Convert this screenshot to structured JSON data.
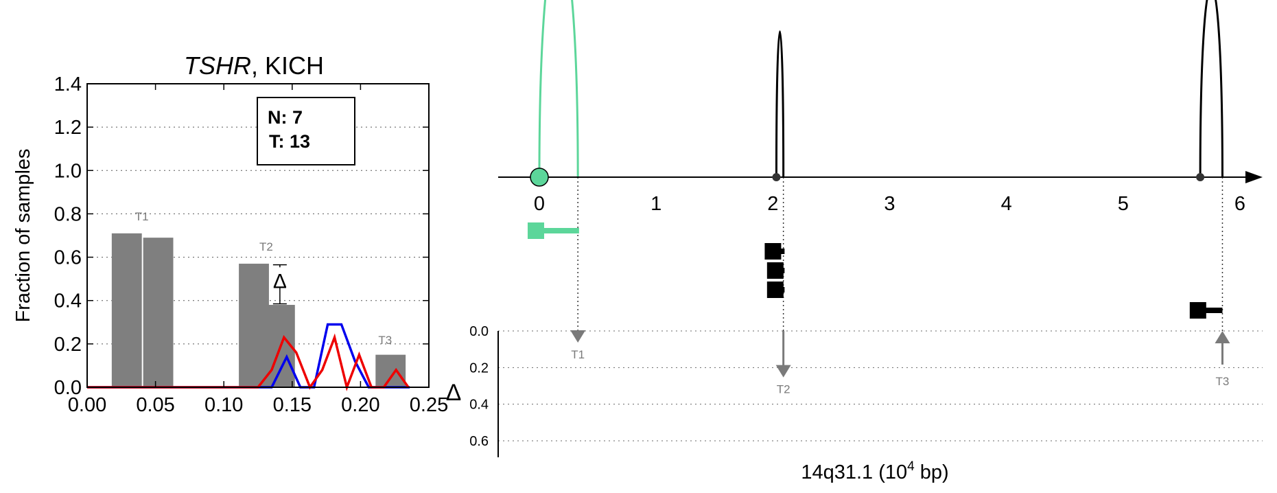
{
  "chart_data": [
    {
      "type": "bar",
      "title_gene": "TSHR",
      "title_rest": ", KICH",
      "ylabel": "Fraction of samples",
      "xlabel_symbol": "Δ",
      "xlim": [
        0,
        0.25
      ],
      "ylim": [
        0,
        1.4
      ],
      "x_ticks": [
        "0.00",
        "0.05",
        "0.10",
        "0.15",
        "0.20",
        "0.25"
      ],
      "y_ticks": [
        "0.0",
        "0.2",
        "0.4",
        "0.6",
        "0.8",
        "1.0",
        "1.2",
        "1.4"
      ],
      "grid": "horizontal-dotted",
      "legend_box": {
        "n_label": "N: 7",
        "t_label": "T: 13",
        "placement": "top-right"
      },
      "bars": [
        {
          "x": 0.029,
          "value": 0.71,
          "group": "T1"
        },
        {
          "x": 0.052,
          "value": 0.69,
          "group": ""
        },
        {
          "x": 0.122,
          "value": 0.57,
          "group": "T2"
        },
        {
          "x": 0.141,
          "value": 0.38,
          "group": ""
        },
        {
          "x": 0.222,
          "value": 0.15,
          "group": "T3"
        }
      ],
      "bar_width": 0.022,
      "group_labels": [
        {
          "text": "T1",
          "x": 0.04,
          "y": 0.77
        },
        {
          "text": "T2",
          "x": 0.131,
          "y": 0.63
        },
        {
          "text": "T3",
          "x": 0.218,
          "y": 0.2
        }
      ],
      "delta_marker": {
        "x": 0.141,
        "y": 0.49,
        "err_low": 0.385,
        "err_high": 0.565,
        "symbol": "Δ"
      },
      "series": [
        {
          "color": "#0000ee",
          "x": [
            0.0,
            0.12,
            0.135,
            0.146,
            0.156,
            0.166,
            0.176,
            0.186,
            0.196,
            0.206,
            0.216,
            0.226,
            0.236
          ],
          "y": [
            0.0,
            0.0,
            0.0,
            0.14,
            0.0,
            0.0,
            0.29,
            0.29,
            0.12,
            0.0,
            0.0,
            0.0,
            0.0
          ]
        },
        {
          "color": "#ee0000",
          "x": [
            0.0,
            0.125,
            0.135,
            0.144,
            0.153,
            0.163,
            0.172,
            0.181,
            0.19,
            0.199,
            0.208,
            0.217,
            0.226,
            0.235
          ],
          "y": [
            0.0,
            0.0,
            0.08,
            0.23,
            0.16,
            0.0,
            0.08,
            0.23,
            0.0,
            0.15,
            0.0,
            0.0,
            0.08,
            0.0
          ]
        }
      ]
    },
    {
      "type": "line",
      "xlabel_main": "14q31.1 (10",
      "xlabel_exp": "4",
      "xlabel_tail": " bp)",
      "xlim": [
        -0.35,
        6.1
      ],
      "x_ticks": [
        "0",
        "1",
        "2",
        "3",
        "4",
        "5",
        "6"
      ],
      "y_lower_ticks": [
        "0.0",
        "0.2",
        "0.4",
        "0.6"
      ],
      "lower_ylim": [
        0,
        0.6
      ],
      "arcs": [
        {
          "start": 0.0,
          "end": 0.33,
          "height": 1.0,
          "color": "#5cd69a",
          "start_marker": "large-circle"
        },
        {
          "start": 2.03,
          "end": 2.09,
          "height": 0.61,
          "color": "#000000",
          "start_marker": "dot"
        },
        {
          "start": 5.66,
          "end": 5.85,
          "height": 0.8,
          "color": "#000000",
          "start_marker": "dot"
        }
      ],
      "transcripts": [
        {
          "x1": -0.1,
          "x2": 0.34,
          "row": 0,
          "color": "#5cd69a"
        },
        {
          "x1": 1.93,
          "x2": 2.1,
          "row": 1,
          "color": "#000000"
        },
        {
          "x1": 1.95,
          "x2": 2.1,
          "row": 2,
          "color": "#000000"
        },
        {
          "x1": 1.95,
          "x2": 2.1,
          "row": 3,
          "color": "#000000"
        },
        {
          "x1": 5.57,
          "x2": 5.85,
          "row": 4,
          "color": "#000000"
        }
      ],
      "markers": [
        {
          "label": "T1",
          "x": 0.33,
          "value": 0.0,
          "direction": "down"
        },
        {
          "label": "T2",
          "x": 2.09,
          "value": 0.19,
          "direction": "down"
        },
        {
          "label": "T3",
          "x": 5.85,
          "value": 0.15,
          "direction": "up"
        }
      ]
    }
  ]
}
